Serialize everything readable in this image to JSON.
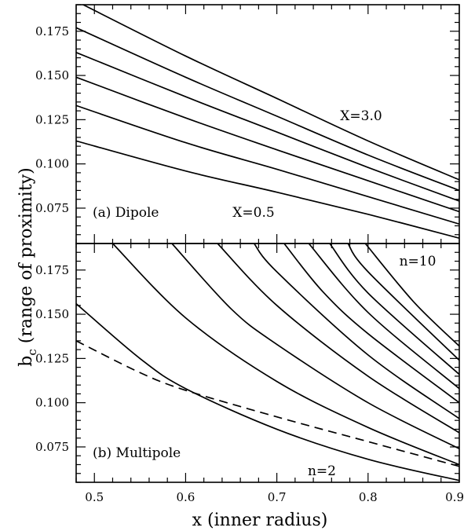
{
  "chart_data": [
    {
      "type": "line",
      "panel": "top",
      "annotations": {
        "panel_label": "(a) Dipole",
        "top_curve_label": "X=3.0",
        "bottom_curve_label": "X=0.5"
      },
      "xlim": [
        0.48,
        0.9
      ],
      "ylim": [
        0.055,
        0.19
      ],
      "x_ticks": [
        0.5,
        0.6,
        0.7,
        0.8,
        0.9
      ],
      "y_ticks": [
        "0.075",
        "0.100",
        "0.125",
        "0.150",
        "0.175"
      ],
      "y_tick_values": [
        0.075,
        0.1,
        0.125,
        0.15,
        0.175
      ],
      "series": [
        {
          "x": [
            0.48,
            0.6,
            0.7,
            0.8,
            0.9
          ],
          "y": [
            0.113,
            0.096,
            0.084,
            0.0715,
            0.058
          ]
        },
        {
          "x": [
            0.48,
            0.6,
            0.7,
            0.8,
            0.9
          ],
          "y": [
            0.133,
            0.112,
            0.097,
            0.0815,
            0.066
          ]
        },
        {
          "x": [
            0.48,
            0.6,
            0.7,
            0.8,
            0.9
          ],
          "y": [
            0.149,
            0.126,
            0.108,
            0.0905,
            0.073
          ]
        },
        {
          "x": [
            0.48,
            0.6,
            0.7,
            0.8,
            0.9
          ],
          "y": [
            0.163,
            0.138,
            0.118,
            0.098,
            0.079
          ]
        },
        {
          "x": [
            0.48,
            0.6,
            0.7,
            0.8,
            0.9
          ],
          "y": [
            0.177,
            0.149,
            0.127,
            0.105,
            0.085
          ]
        },
        {
          "x": [
            0.48,
            0.6,
            0.7,
            0.8,
            0.9
          ],
          "y": [
            0.192,
            0.161,
            0.137,
            0.113,
            0.091
          ]
        }
      ]
    },
    {
      "type": "line",
      "panel": "bottom",
      "annotations": {
        "panel_label": "(b) Multipole",
        "top_curve_label": "n=10",
        "bottom_curve_label": "n=2"
      },
      "xlim": [
        0.48,
        0.9
      ],
      "ylim": [
        0.055,
        0.19
      ],
      "x_ticks": [
        "0.5",
        "0.6",
        "0.7",
        "0.8",
        "0.9"
      ],
      "x_tick_values": [
        0.5,
        0.6,
        0.7,
        0.8,
        0.9
      ],
      "y_ticks": [
        "0.075",
        "0.100",
        "0.125",
        "0.150",
        "0.175"
      ],
      "y_tick_values": [
        0.075,
        0.1,
        0.125,
        0.15,
        0.175
      ],
      "series": [
        {
          "x": [
            0.48,
            0.55,
            0.6,
            0.7,
            0.8,
            0.9
          ],
          "y": [
            0.156,
            0.125,
            0.108,
            0.085,
            0.068,
            0.056
          ]
        },
        {
          "x": [
            0.52,
            0.6,
            0.7,
            0.8,
            0.9
          ],
          "y": [
            0.19,
            0.148,
            0.112,
            0.086,
            0.065
          ]
        },
        {
          "x": [
            0.585,
            0.65,
            0.7,
            0.8,
            0.9
          ],
          "y": [
            0.19,
            0.153,
            0.133,
            0.1,
            0.074
          ]
        },
        {
          "x": [
            0.635,
            0.7,
            0.8,
            0.9
          ],
          "y": [
            0.19,
            0.155,
            0.115,
            0.083
          ]
        },
        {
          "x": [
            0.675,
            0.7,
            0.8,
            0.9
          ],
          "y": [
            0.19,
            0.174,
            0.127,
            0.091
          ]
        },
        {
          "x": [
            0.708,
            0.75,
            0.8,
            0.9
          ],
          "y": [
            0.19,
            0.163,
            0.139,
            0.1
          ]
        },
        {
          "x": [
            0.735,
            0.8,
            0.9
          ],
          "y": [
            0.19,
            0.151,
            0.108
          ]
        },
        {
          "x": [
            0.758,
            0.8,
            0.9
          ],
          "y": [
            0.19,
            0.162,
            0.116
          ]
        },
        {
          "x": [
            0.778,
            0.8,
            0.9
          ],
          "y": [
            0.19,
            0.174,
            0.124
          ]
        },
        {
          "x": [
            0.797,
            0.85,
            0.9
          ],
          "y": [
            0.19,
            0.157,
            0.132
          ]
        },
        {
          "x": [
            0.48,
            0.55,
            0.6,
            0.7,
            0.8,
            0.9
          ],
          "y": [
            0.135,
            0.117,
            0.107,
            0.092,
            0.078,
            0.064
          ],
          "style": "dashed"
        }
      ]
    }
  ],
  "axes": {
    "xlabel": "x (inner radius)",
    "ylabel_main": "b",
    "ylabel_sub": "c",
    "ylabel_rest": " (range of proximity)"
  }
}
